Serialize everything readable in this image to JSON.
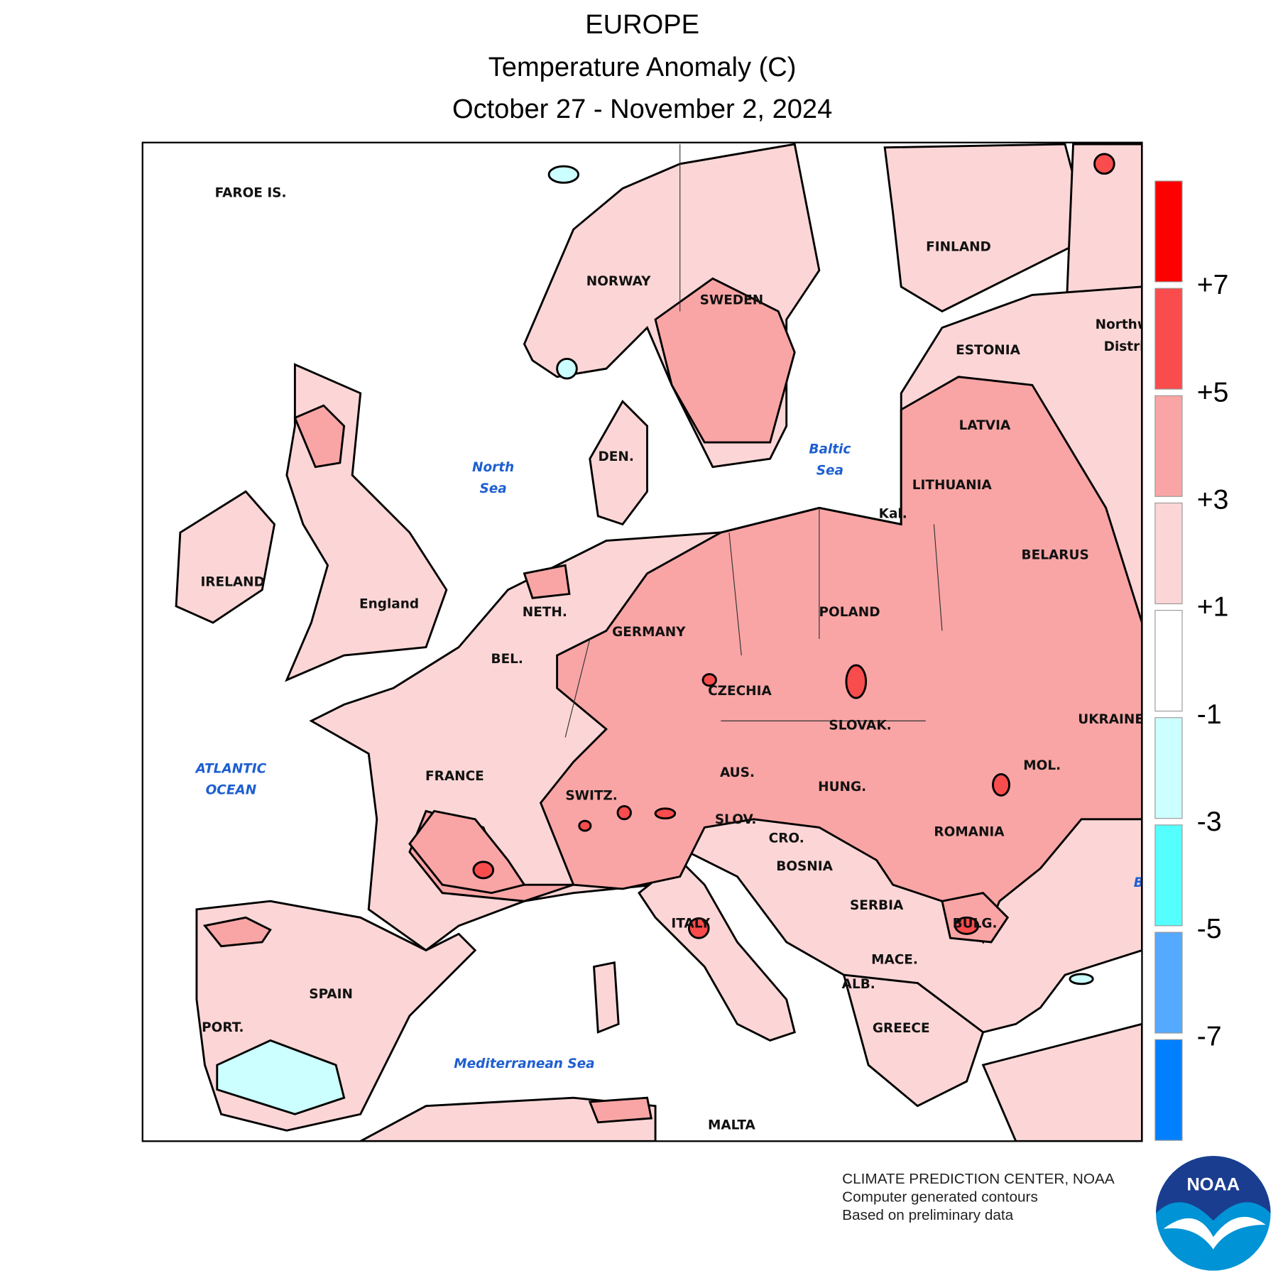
{
  "header": {
    "region": "EUROPE",
    "title": "Temperature Anomaly (C)",
    "period": "October 27 - November 2, 2024"
  },
  "map": {
    "labels": [
      "FAROE IS.",
      "NORWAY",
      "SWEDEN",
      "FINLAND",
      "ESTONIA",
      "LATVIA",
      "LITHUANIA",
      "Kal.",
      "BELARUS",
      "DEN.",
      "IRELAND",
      "England",
      "NETH.",
      "GERMANY",
      "POLAND",
      "BEL.",
      "CZECHIA",
      "SLOVAK.",
      "UKRAINE",
      "FRANCE",
      "SWITZ.",
      "AUS.",
      "HUNG.",
      "MOL.",
      "ROMANIA",
      "SLOV.",
      "CRO.",
      "BOSNIA",
      "SERBIA",
      "ITALY",
      "BULG.",
      "MACE.",
      "ALB.",
      "GREECE",
      "SPAIN",
      "PORT.",
      "MALTA",
      "Northw",
      "Distri"
    ],
    "seas": [
      "North",
      "Sea",
      "Baltic",
      "Sea",
      "ATLANTIC",
      "OCEAN",
      "Mediterranean Sea",
      "B"
    ]
  },
  "legend": {
    "labels": [
      "+7",
      "+5",
      "+3",
      "+1",
      "-1",
      "-3",
      "-5",
      "-7"
    ],
    "colors": [
      "#ff0000",
      "#f94c4c",
      "#f9a5a5",
      "#fcd6d6",
      "#ffffff",
      "#ccffff",
      "#55ffff",
      "#55aaff",
      "#0080ff"
    ]
  },
  "footer": {
    "lines": [
      "CLIMATE PREDICTION CENTER, NOAA",
      "Computer generated contours",
      "Based on preliminary data"
    ],
    "logo": "NOAA"
  }
}
